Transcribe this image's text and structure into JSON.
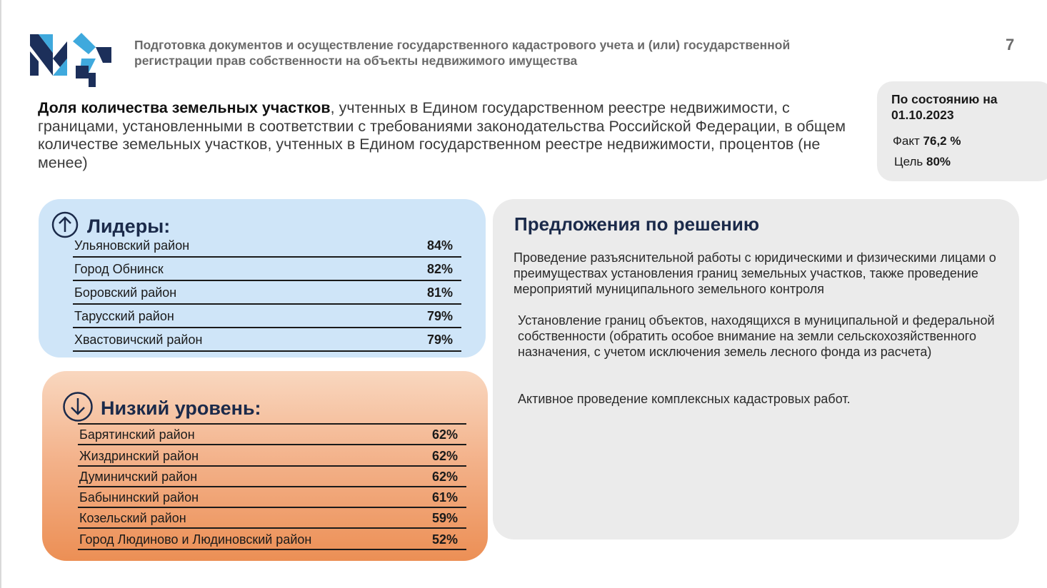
{
  "header": {
    "title_line1": "Подготовка документов и осуществление государственного кадастрового учета и (или) государственной",
    "title_line2": "регистрации прав собственности на объекты недвижимого имущества",
    "page_number": "7",
    "logo_icon": "logo-mp-icon"
  },
  "indicator": {
    "bold": "Доля количества земельных участков",
    "rest": ", учтенных в Едином государственном реестре недвижимости, с границами, установленными в соответствии с требованиями законодательства Российской Федерации, в общем количестве земельных участков, учтенных в Едином государственном реестре недвижимости, процентов (не менее)"
  },
  "status": {
    "title": "По состоянию на 01.10.2023",
    "fact_label": "Факт",
    "fact_value": "76,2 %",
    "goal_label": "Цель",
    "goal_value": "80%"
  },
  "leaders": {
    "title": "Лидеры:",
    "icon": "arrow-up-circle-icon",
    "rows": [
      {
        "name": "Ульяновский район",
        "value": "84%"
      },
      {
        "name": "Город Обнинск",
        "value": "82%"
      },
      {
        "name": "Боровский район",
        "value": "81%"
      },
      {
        "name": "Тарусский район",
        "value": "79%"
      },
      {
        "name": "Хвастовичский район",
        "value": "79%"
      }
    ]
  },
  "low": {
    "title": "Низкий уровень:",
    "icon": "arrow-down-circle-icon",
    "rows": [
      {
        "name": "Барятинский район",
        "value": "62%"
      },
      {
        "name": "Жиздринский район",
        "value": "62%"
      },
      {
        "name": "Думиничский район",
        "value": "62%"
      },
      {
        "name": "Бабынинский район",
        "value": "61%"
      },
      {
        "name": "Козельский район",
        "value": "59%"
      },
      {
        "name": "Город Людиново и Людиновский район",
        "value": "52%"
      }
    ]
  },
  "proposals": {
    "title": "Предложения по решению",
    "items": [
      "Проведение разъяснительной работы с юридическими и физическими лицами о преимуществах установления границ земельных участков, также проведение мероприятий муниципального земельного контроля",
      "Установление границ  объектов, находящихся в муниципальной и федеральной собственности (обратить особое внимание на земли сельскохозяйственного назначения, с учетом исключения земель лесного фонда из расчета)",
      "Активное проведение комплексных кадастровых работ."
    ]
  },
  "colors": {
    "leaders_bg": "#cfe5f8",
    "low_bg_top": "#f9d7bf",
    "low_bg_bottom": "#ec8f55",
    "panel_bg": "#ebebeb",
    "heading": "#1b2a4a",
    "logo_navy": "#1c2f5a",
    "logo_blue": "#3fa9dd"
  }
}
